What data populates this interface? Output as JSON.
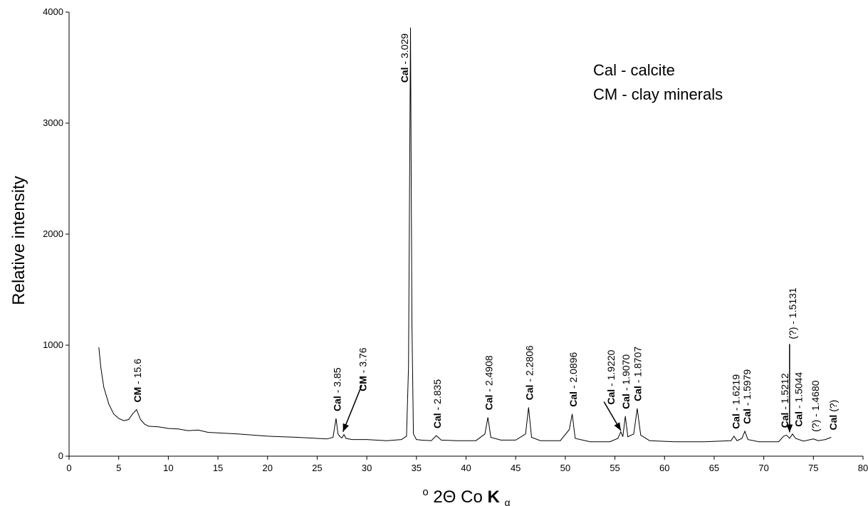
{
  "chart_data": {
    "type": "line",
    "title": "",
    "ylabel": "Relative intensity",
    "xlabel": {
      "degree": "o",
      "main": "2Θ Co",
      "bold": "K",
      "sub": "α"
    },
    "xlim": [
      0,
      80
    ],
    "ylim": [
      0,
      4000
    ],
    "xticks": [
      0,
      5,
      10,
      15,
      20,
      25,
      30,
      35,
      40,
      45,
      50,
      55,
      60,
      65,
      70,
      75,
      80
    ],
    "yticks": [
      0,
      1000,
      2000,
      3000,
      4000
    ],
    "grid": false,
    "legend_position": "top-right",
    "legend": [
      "Cal - calcite",
      "CM - clay minerals"
    ],
    "series": [
      {
        "x": [
          3.0,
          3.2,
          3.5,
          4.0,
          4.5,
          5.0,
          5.5,
          6.0,
          6.4,
          6.8,
          7.2,
          7.6,
          8.0,
          9.0,
          10.0,
          11.0,
          12.0,
          13.0,
          14.0,
          15.0,
          17.0,
          20.0,
          23.0,
          25.0,
          26.0,
          26.6,
          26.9,
          27.1,
          27.3,
          27.5,
          27.7,
          27.9,
          28.5,
          30.0,
          32.0,
          33.5,
          34.0,
          34.2,
          34.4,
          34.55,
          34.7,
          35.0,
          35.5,
          36.5,
          37.0,
          37.5,
          39.0,
          41.0,
          41.9,
          42.2,
          42.5,
          43.5,
          45.0,
          46.0,
          46.3,
          46.6,
          47.5,
          49.5,
          50.4,
          50.7,
          51.0,
          52.5,
          54.5,
          55.3,
          55.6,
          55.8,
          56.05,
          56.3,
          56.9,
          57.25,
          57.6,
          58.5,
          61.0,
          64.0,
          66.7,
          67.0,
          67.3,
          67.8,
          68.1,
          68.4,
          69.5,
          71.5,
          72.0,
          72.3,
          72.6,
          72.9,
          73.2,
          74.0,
          75.0,
          75.5,
          76.2,
          76.8
        ],
        "y": [
          980,
          800,
          620,
          470,
          380,
          340,
          320,
          330,
          380,
          420,
          330,
          290,
          270,
          265,
          250,
          245,
          230,
          235,
          215,
          210,
          200,
          180,
          170,
          160,
          155,
          170,
          340,
          200,
          175,
          165,
          195,
          160,
          150,
          150,
          140,
          150,
          180,
          800,
          3860,
          1200,
          200,
          150,
          145,
          140,
          185,
          145,
          140,
          140,
          200,
          350,
          170,
          145,
          145,
          200,
          440,
          170,
          140,
          140,
          240,
          380,
          160,
          130,
          130,
          160,
          220,
          175,
          360,
          175,
          200,
          430,
          190,
          140,
          130,
          130,
          140,
          180,
          140,
          160,
          225,
          150,
          130,
          130,
          180,
          190,
          160,
          200,
          160,
          135,
          155,
          140,
          150,
          170
        ]
      }
    ],
    "peak_labels": [
      {
        "x": 6.9,
        "y": 420,
        "bold": "CM",
        "rest": " - 15.6"
      },
      {
        "x": 27.0,
        "y": 340,
        "bold": "Cal",
        "rest": " - 3.85"
      },
      {
        "x": 29.6,
        "y": 520,
        "bold": "CM",
        "rest": " - 3.76"
      },
      {
        "x": 33.8,
        "y": 3300,
        "bold": "Cal",
        "rest": " - 3.029"
      },
      {
        "x": 37.1,
        "y": 185,
        "bold": "Cal",
        "rest": " - 2.835"
      },
      {
        "x": 42.3,
        "y": 350,
        "bold": "Cal",
        "rest": " - 2.4908"
      },
      {
        "x": 46.4,
        "y": 440,
        "bold": "Cal",
        "rest": " - 2.2806"
      },
      {
        "x": 50.8,
        "y": 380,
        "bold": "Cal",
        "rest": " - 2.0896"
      },
      {
        "x": 54.6,
        "y": 400,
        "bold": "Cal",
        "rest": " - 1.9220"
      },
      {
        "x": 56.1,
        "y": 360,
        "bold": "Cal",
        "rest": " - 1.9070"
      },
      {
        "x": 57.3,
        "y": 430,
        "bold": "Cal",
        "rest": " - 1.8707"
      },
      {
        "x": 67.2,
        "y": 180,
        "bold": "Cal",
        "rest": " - 1.6219"
      },
      {
        "x": 68.3,
        "y": 225,
        "bold": "Cal",
        "rest": " - 1.5979"
      },
      {
        "x": 72.1,
        "y": 190,
        "bold": "Cal",
        "rest": " - 1.5212"
      },
      {
        "x": 72.9,
        "y": 990,
        "bold": "",
        "rest": "(?) - 1.5131"
      },
      {
        "x": 73.5,
        "y": 200,
        "bold": "Cal",
        "rest": " - 1.5044"
      },
      {
        "x": 75.2,
        "y": 155,
        "bold": "",
        "rest": "(?) - 1.4680"
      },
      {
        "x": 77.0,
        "y": 170,
        "bold": "Cal",
        "rest": " (?)"
      }
    ],
    "arrows": [
      {
        "from": [
          29.5,
          640
        ],
        "to": [
          27.6,
          220
        ]
      },
      {
        "from": [
          72.6,
          1010
        ],
        "to": [
          72.6,
          215
        ]
      },
      {
        "from": [
          53.9,
          490
        ],
        "to": [
          55.6,
          230
        ]
      }
    ]
  }
}
